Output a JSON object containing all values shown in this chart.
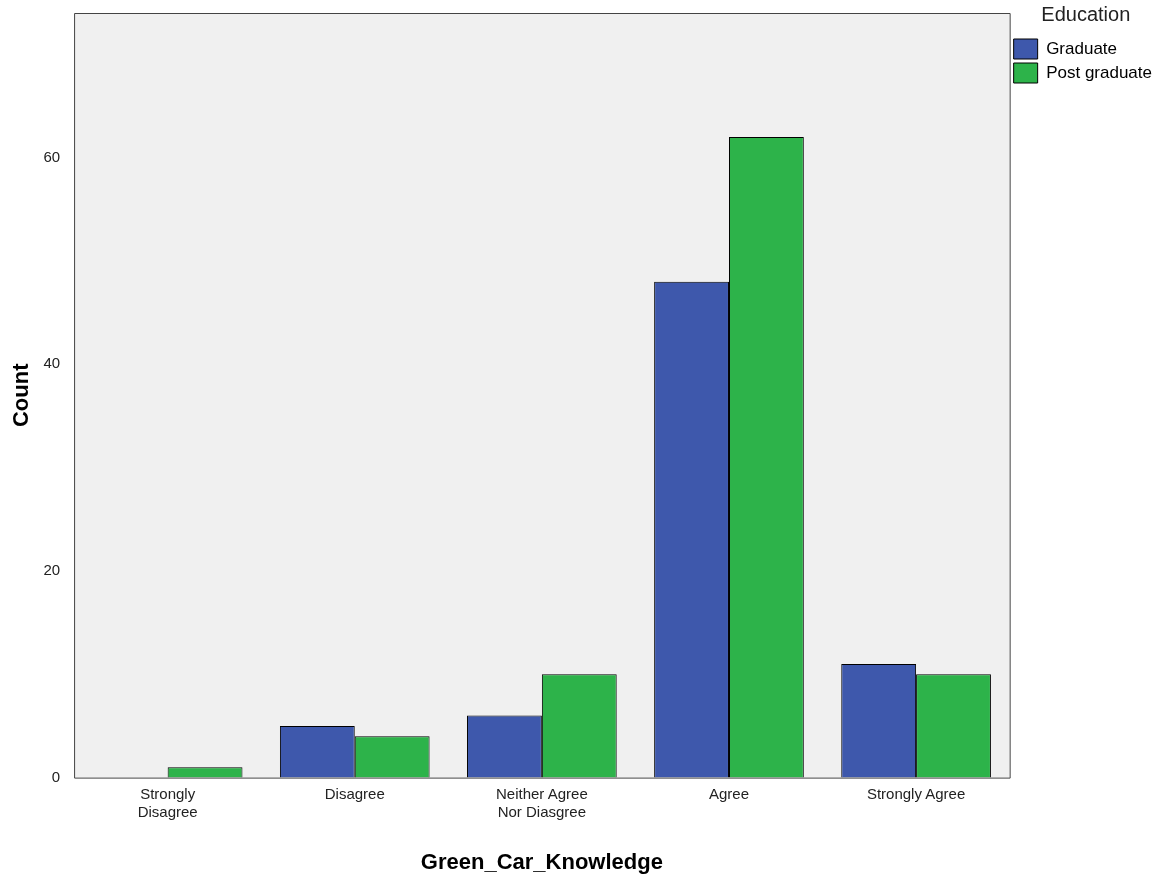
{
  "chart_data": {
    "type": "bar",
    "xlabel": "Green_Car_Knowledge",
    "ylabel": "Count",
    "legend_title": "Education",
    "categories": [
      "Strongly Disagree",
      "Disagree",
      "Neither Agree Nor Diasgree",
      "Agree",
      "Strongly Agree"
    ],
    "series": [
      {
        "name": "Graduate",
        "color": "#3e58ac",
        "values": [
          0,
          5,
          6,
          48,
          11
        ]
      },
      {
        "name": "Post graduate",
        "color": "#2db34a",
        "values": [
          1,
          4,
          10,
          62,
          10
        ]
      }
    ],
    "ylim": [
      0,
      74
    ],
    "yticks": [
      0,
      20,
      40,
      60
    ],
    "grid": false,
    "legend": "top right"
  }
}
